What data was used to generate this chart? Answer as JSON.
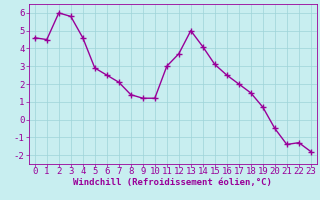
{
  "x": [
    0,
    1,
    2,
    3,
    4,
    5,
    6,
    7,
    8,
    9,
    10,
    11,
    12,
    13,
    14,
    15,
    16,
    17,
    18,
    19,
    20,
    21,
    22,
    23
  ],
  "y": [
    4.6,
    4.5,
    6.0,
    5.8,
    4.6,
    2.9,
    2.5,
    2.1,
    1.4,
    1.2,
    1.2,
    3.0,
    3.7,
    5.0,
    4.1,
    3.1,
    2.5,
    2.0,
    1.5,
    0.7,
    -0.5,
    -1.4,
    -1.3,
    -1.8
  ],
  "line_color": "#990099",
  "marker": "+",
  "marker_size": 4,
  "bg_color": "#c8eef0",
  "grid_color": "#9ed4d8",
  "xlabel": "Windchill (Refroidissement éolien,°C)",
  "xlim": [
    -0.5,
    23.5
  ],
  "ylim": [
    -2.5,
    6.5
  ],
  "xticks": [
    0,
    1,
    2,
    3,
    4,
    5,
    6,
    7,
    8,
    9,
    10,
    11,
    12,
    13,
    14,
    15,
    16,
    17,
    18,
    19,
    20,
    21,
    22,
    23
  ],
  "yticks": [
    -2,
    -1,
    0,
    1,
    2,
    3,
    4,
    5,
    6
  ],
  "xlabel_fontsize": 6.5,
  "tick_fontsize": 6.5,
  "line_width": 1.0
}
